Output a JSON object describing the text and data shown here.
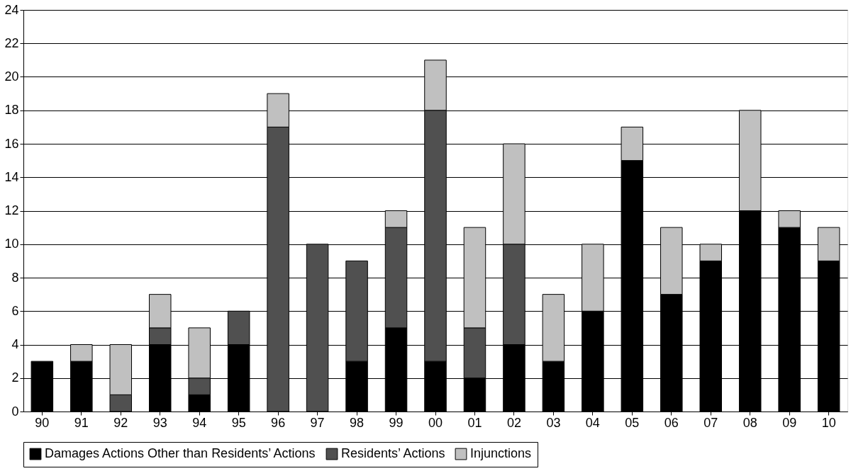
{
  "chart_data": {
    "type": "bar",
    "stacked": true,
    "categories": [
      "90",
      "91",
      "92",
      "93",
      "94",
      "95",
      "96",
      "97",
      "98",
      "99",
      "00",
      "01",
      "02",
      "03",
      "04",
      "05",
      "06",
      "07",
      "08",
      "09",
      "10"
    ],
    "series": [
      {
        "name": "Damages Actions Other than Residents’ Actions",
        "color": "#000000",
        "values": [
          3,
          3,
          0,
          4,
          1,
          4,
          0,
          0,
          3,
          5,
          3,
          2,
          4,
          3,
          6,
          15,
          7,
          9,
          12,
          11,
          9
        ]
      },
      {
        "name": "Residents’ Actions",
        "color": "#505050",
        "values": [
          0,
          0,
          1,
          1,
          1,
          2,
          17,
          10,
          6,
          6,
          15,
          3,
          6,
          0,
          0,
          0,
          0,
          0,
          0,
          0,
          0
        ]
      },
      {
        "name": "Injunctions",
        "color": "#c0c0c0",
        "values": [
          0,
          1,
          3,
          2,
          3,
          0,
          2,
          0,
          0,
          1,
          3,
          6,
          6,
          4,
          4,
          2,
          4,
          1,
          6,
          1,
          2
        ]
      }
    ],
    "ylim": [
      0,
      24
    ],
    "yticks": [
      0,
      2,
      4,
      6,
      8,
      10,
      12,
      14,
      16,
      18,
      20,
      22,
      24
    ],
    "grid": "y",
    "legend": "bottom"
  }
}
